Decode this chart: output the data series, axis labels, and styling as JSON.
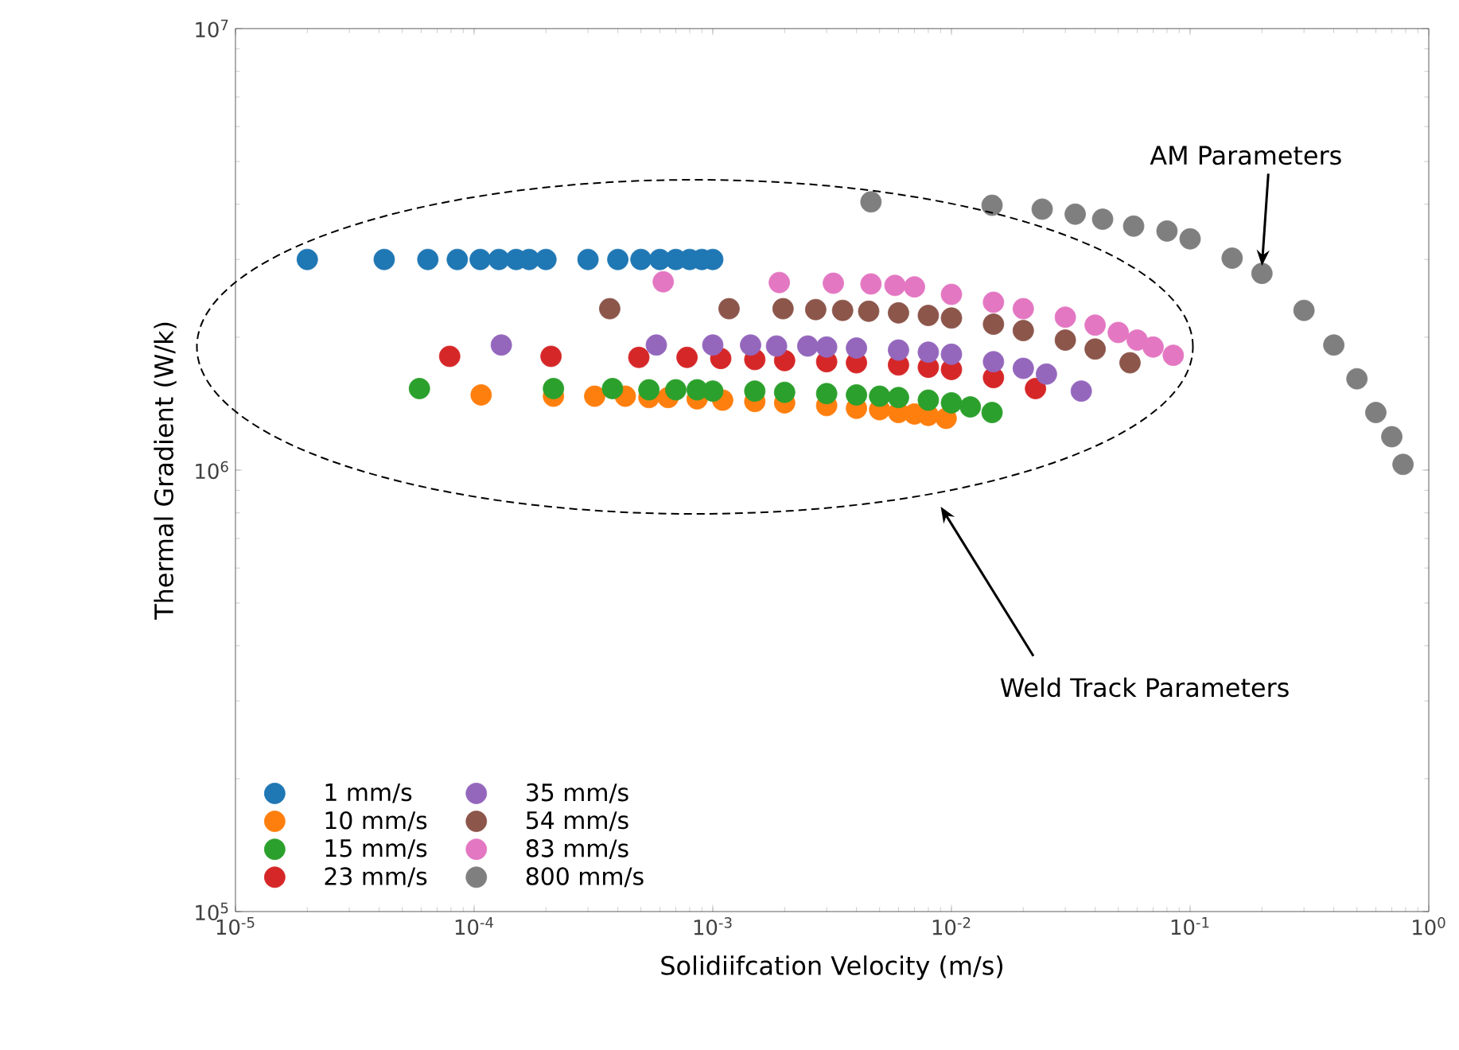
{
  "chart_data": {
    "type": "scatter",
    "xlabel": "Solidiifcation Velocity (m/s)",
    "ylabel": "Thermal Gradient (W/k)",
    "log": "xy",
    "xlim": [
      1e-05,
      1
    ],
    "ylim": [
      100000,
      10000000
    ],
    "xticks": [
      {
        "value": 1e-05,
        "label": "10$^{-5}$"
      },
      {
        "value": 0.0001,
        "label": "10$^{-4}$"
      },
      {
        "value": 0.001,
        "label": "10$^{-3}$"
      },
      {
        "value": 0.01,
        "label": "10$^{-2}$"
      },
      {
        "value": 0.1,
        "label": "10$^{-1}$"
      },
      {
        "value": 1,
        "label": "10$^{0}$"
      }
    ],
    "yticks": [
      {
        "value": 100000,
        "label": "10$^{5}$"
      },
      {
        "value": 1000000,
        "label": "10$^{6}$"
      },
      {
        "value": 10000000,
        "label": "10$^{7}$"
      }
    ],
    "marker": "circle",
    "legend": "bottom left",
    "grid": false,
    "annotations": [
      {
        "text": "AM Parameters",
        "x": 0.2,
        "y": 2900000
      },
      "Weld Track Parameters"
    ],
    "series": [
      {
        "name": "1 mm/s",
        "color": "#1f77b4",
        "x": [
          2e-05,
          4.2e-05,
          6.4e-05,
          8.5e-05,
          0.000106,
          0.000127,
          0.00015,
          0.00017,
          0.0002,
          0.0003,
          0.0004,
          0.0005,
          0.0006,
          0.0007,
          0.0008,
          0.0009,
          0.001
        ],
        "values": [
          3000000,
          3000000,
          3000000,
          3000000,
          3000000,
          3000000,
          3000000,
          3000000,
          3000000,
          3000000,
          3000000,
          3000000,
          3000000,
          3000000,
          3000000,
          3000000,
          3000000
        ]
      },
      {
        "name": "10 mm/s",
        "color": "#ff7f0e",
        "x": [
          0.000107,
          0.000215,
          0.00032,
          0.00043,
          0.00054,
          0.00065,
          0.00086,
          0.0011,
          0.0015,
          0.002,
          0.003,
          0.004,
          0.005,
          0.006,
          0.007,
          0.008,
          0.0095
        ],
        "values": [
          1480000,
          1470000,
          1470000,
          1470000,
          1460000,
          1460000,
          1450000,
          1440000,
          1430000,
          1420000,
          1400000,
          1380000,
          1370000,
          1350000,
          1340000,
          1330000,
          1310000
        ]
      },
      {
        "name": "15 mm/s",
        "color": "#2ca02c",
        "x": [
          5.9e-05,
          0.000215,
          0.00038,
          0.00054,
          0.0007,
          0.00086,
          0.001,
          0.0015,
          0.002,
          0.003,
          0.004,
          0.005,
          0.006,
          0.008,
          0.01,
          0.012,
          0.0148
        ],
        "values": [
          1530000,
          1530000,
          1530000,
          1520000,
          1520000,
          1520000,
          1510000,
          1510000,
          1500000,
          1490000,
          1480000,
          1470000,
          1460000,
          1440000,
          1420000,
          1390000,
          1350000
        ]
      },
      {
        "name": "23 mm/s",
        "color": "#d62728",
        "x": [
          7.9e-05,
          0.00021,
          0.00049,
          0.00078,
          0.00108,
          0.0015,
          0.002,
          0.003,
          0.004,
          0.006,
          0.008,
          0.01,
          0.015,
          0.0225
        ],
        "values": [
          1810000,
          1810000,
          1800000,
          1800000,
          1790000,
          1780000,
          1770000,
          1760000,
          1750000,
          1730000,
          1710000,
          1690000,
          1620000,
          1530000
        ]
      },
      {
        "name": "35 mm/s",
        "color": "#9467bd",
        "x": [
          0.00013,
          0.00058,
          0.001,
          0.00144,
          0.00185,
          0.0025,
          0.003,
          0.004,
          0.006,
          0.008,
          0.01,
          0.015,
          0.02,
          0.025,
          0.035
        ],
        "values": [
          1920000,
          1920000,
          1920000,
          1920000,
          1910000,
          1910000,
          1900000,
          1890000,
          1870000,
          1850000,
          1830000,
          1760000,
          1700000,
          1650000,
          1510000
        ]
      },
      {
        "name": "54 mm/s",
        "color": "#8c564b",
        "x": [
          0.00037,
          0.00117,
          0.00197,
          0.0027,
          0.0035,
          0.0045,
          0.006,
          0.008,
          0.01,
          0.015,
          0.02,
          0.03,
          0.04,
          0.056
        ],
        "values": [
          2320000,
          2320000,
          2320000,
          2310000,
          2300000,
          2290000,
          2270000,
          2240000,
          2210000,
          2140000,
          2070000,
          1970000,
          1880000,
          1750000
        ]
      },
      {
        "name": "83 mm/s",
        "color": "#e377c2",
        "x": [
          0.00062,
          0.0019,
          0.0032,
          0.0046,
          0.0058,
          0.007,
          0.01,
          0.015,
          0.02,
          0.03,
          0.04,
          0.05,
          0.06,
          0.07,
          0.085
        ],
        "values": [
          2670000,
          2660000,
          2650000,
          2640000,
          2620000,
          2600000,
          2500000,
          2400000,
          2320000,
          2220000,
          2130000,
          2050000,
          1970000,
          1900000,
          1820000
        ]
      },
      {
        "name": "800 mm/s",
        "color": "#7f7f7f",
        "x": [
          0.0046,
          0.0148,
          0.024,
          0.033,
          0.043,
          0.058,
          0.08,
          0.1,
          0.15,
          0.2,
          0.3,
          0.4,
          0.5,
          0.6,
          0.7,
          0.78
        ],
        "values": [
          4050000,
          3980000,
          3900000,
          3800000,
          3700000,
          3570000,
          3480000,
          3340000,
          3020000,
          2790000,
          2300000,
          1920000,
          1610000,
          1350000,
          1190000,
          1030000
        ]
      }
    ]
  }
}
